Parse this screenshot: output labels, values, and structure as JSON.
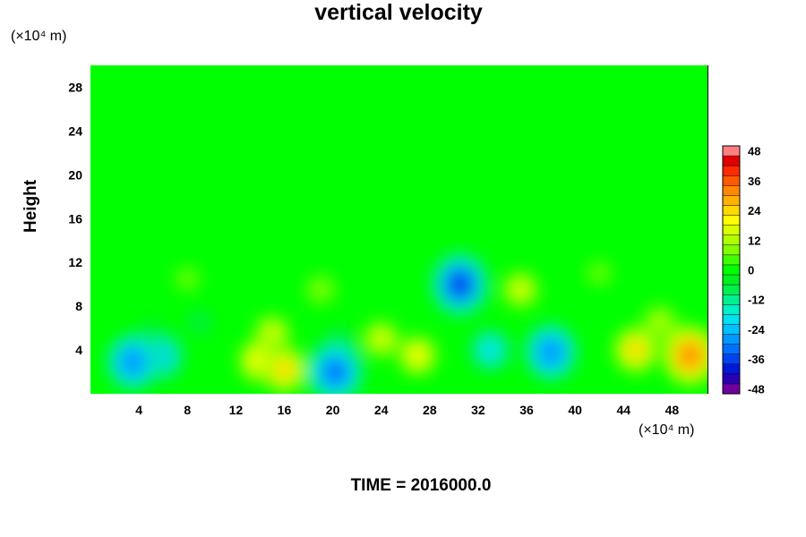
{
  "chart_data": {
    "type": "heatmap",
    "title": "vertical velocity",
    "ylabel": "Height",
    "y_unit": "(×10⁴ m)",
    "x_unit": "(×10⁴ m)",
    "footer": "TIME = 2016000.0",
    "x_ticks": [
      4,
      8,
      12,
      16,
      20,
      24,
      28,
      32,
      36,
      40,
      44,
      48
    ],
    "y_ticks": [
      4,
      8,
      12,
      16,
      20,
      24,
      28
    ],
    "xlim": [
      0,
      51
    ],
    "ylim": [
      0,
      30
    ],
    "colorbar": {
      "ticks": [
        48,
        36,
        24,
        12,
        0,
        -12,
        -24,
        -36,
        -48
      ],
      "range": [
        -50,
        50
      ],
      "levels": [
        -50,
        -46,
        -42,
        -38,
        -34,
        -30,
        -26,
        -22,
        -18,
        -14,
        -10,
        -6,
        -2,
        2,
        6,
        10,
        14,
        18,
        22,
        26,
        30,
        34,
        38,
        42,
        46,
        50
      ],
      "colors": [
        "#7000a0",
        "#2a00b4",
        "#0018d8",
        "#0044f0",
        "#0070ff",
        "#0098ff",
        "#00c0ff",
        "#00e0f0",
        "#00f0c8",
        "#00f090",
        "#00f050",
        "#00f020",
        "#00ff00",
        "#40ff00",
        "#80ff00",
        "#b0ff00",
        "#d8ff00",
        "#ffff00",
        "#ffd800",
        "#ffb000",
        "#ff8800",
        "#ff5800",
        "#ff2a00",
        "#e00000",
        "#ff8080"
      ]
    },
    "background_value": 0,
    "features": [
      {
        "x": 3.5,
        "y": 2.9,
        "value": -30
      },
      {
        "x": 5.8,
        "y": 3.4,
        "value": -24
      },
      {
        "x": 5.0,
        "y": 5.0,
        "value": -12
      },
      {
        "x": 9.0,
        "y": 6.5,
        "value": -8
      },
      {
        "x": 14.0,
        "y": 3.0,
        "value": 20
      },
      {
        "x": 16.0,
        "y": 2.2,
        "value": 22
      },
      {
        "x": 15.0,
        "y": 5.5,
        "value": 14
      },
      {
        "x": 20.2,
        "y": 2.0,
        "value": -34
      },
      {
        "x": 20.5,
        "y": 4.5,
        "value": -12
      },
      {
        "x": 24.0,
        "y": 5.0,
        "value": 14
      },
      {
        "x": 27.0,
        "y": 3.5,
        "value": 18
      },
      {
        "x": 30.5,
        "y": 10.0,
        "value": -36
      },
      {
        "x": 33.0,
        "y": 4.0,
        "value": -20
      },
      {
        "x": 38.0,
        "y": 3.8,
        "value": -30
      },
      {
        "x": 35.5,
        "y": 9.5,
        "value": 14
      },
      {
        "x": 45.0,
        "y": 4.0,
        "value": 22
      },
      {
        "x": 49.5,
        "y": 3.5,
        "value": 32
      },
      {
        "x": 47.0,
        "y": 6.5,
        "value": 12
      },
      {
        "x": 19.0,
        "y": 9.5,
        "value": 8
      },
      {
        "x": 8.0,
        "y": 10.5,
        "value": 6
      },
      {
        "x": 42.0,
        "y": 11.0,
        "value": 6
      }
    ]
  }
}
